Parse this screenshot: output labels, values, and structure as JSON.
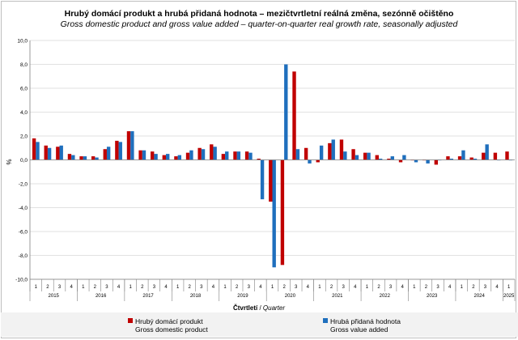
{
  "title": "Hrubý domácí produkt a hrubá přidaná hodnota – mezičtvrtletní  reálná změna, sezónně očištěno",
  "subtitle": "Gross domestic product and gross value added – quarter-on-quarter real growth rate, seasonally adjusted",
  "colors": {
    "gdp": "#c00000",
    "gva": "#1f6fbd",
    "axis": "#808080",
    "grid": "#d9d9d9"
  },
  "chart_data": {
    "type": "bar",
    "title": "Hrubý domácí produkt a hrubá přidaná hodnota – mezičtvrtletní  reálná změna, sezónně očištěno",
    "subtitle": "Gross domestic product and gross value added – quarter-on-quarter real growth rate, seasonally adjusted",
    "ylabel": "%",
    "xlabel_cz": "Čtvrtletí",
    "xlabel_sep": " / ",
    "xlabel_en": "Quarter",
    "ylim": [
      -10,
      10
    ],
    "yticks": [
      "10,0",
      "8,0",
      "6,0",
      "4,0",
      "2,0",
      "0,0",
      "-2,0",
      "-4,0",
      "-6,0",
      "-8,0",
      "-10,0"
    ],
    "categories": [
      "1",
      "2",
      "3",
      "4",
      "1",
      "2",
      "3",
      "4",
      "1",
      "2",
      "3",
      "4",
      "1",
      "2",
      "3",
      "4",
      "1",
      "2",
      "3",
      "4",
      "1",
      "2",
      "3",
      "4",
      "1",
      "2",
      "3",
      "4",
      "1",
      "2",
      "3",
      "4",
      "1",
      "2",
      "3",
      "4",
      "1",
      "2",
      "3",
      "4",
      "1"
    ],
    "years": [
      {
        "label": "2015",
        "start": 0,
        "count": 4
      },
      {
        "label": "2016",
        "start": 4,
        "count": 4
      },
      {
        "label": "2017",
        "start": 8,
        "count": 4
      },
      {
        "label": "2018",
        "start": 12,
        "count": 4
      },
      {
        "label": "2019",
        "start": 16,
        "count": 4
      },
      {
        "label": "2020",
        "start": 20,
        "count": 4
      },
      {
        "label": "2021",
        "start": 24,
        "count": 4
      },
      {
        "label": "2022",
        "start": 28,
        "count": 4
      },
      {
        "label": "2023",
        "start": 32,
        "count": 4
      },
      {
        "label": "2024",
        "start": 36,
        "count": 4
      },
      {
        "label": "2025",
        "start": 40,
        "count": 1
      }
    ],
    "series": [
      {
        "name": "Hrubý domácí produkt",
        "name_en": "Gross domestic product",
        "values": [
          1.8,
          1.2,
          1.1,
          0.5,
          0.3,
          0.3,
          0.9,
          1.6,
          2.4,
          0.8,
          0.7,
          0.4,
          0.3,
          0.6,
          1.0,
          1.3,
          0.5,
          0.7,
          0.7,
          0.1,
          -3.5,
          -8.8,
          7.4,
          1.0,
          -0.2,
          1.4,
          1.7,
          0.9,
          0.6,
          0.4,
          0.1,
          -0.2,
          0.0,
          0.0,
          -0.4,
          0.3,
          0.3,
          0.2,
          0.6,
          0.6,
          0.7
        ]
      },
      {
        "name": "Hrubá přidaná hodnota",
        "name_en": "Gross value added",
        "values": [
          1.5,
          1.0,
          1.2,
          0.4,
          0.3,
          0.2,
          1.1,
          1.5,
          2.4,
          0.8,
          0.5,
          0.5,
          0.4,
          0.8,
          0.9,
          1.1,
          0.7,
          0.7,
          0.6,
          -3.3,
          -9.0,
          8.0,
          0.9,
          -0.3,
          1.2,
          1.7,
          0.7,
          0.4,
          0.6,
          0.1,
          0.3,
          0.4,
          -0.2,
          -0.3,
          0.0,
          0.1,
          0.8,
          0.1,
          1.3,
          0.0,
          0.0
        ]
      }
    ],
    "legend_position": "bottom",
    "grid": true
  }
}
